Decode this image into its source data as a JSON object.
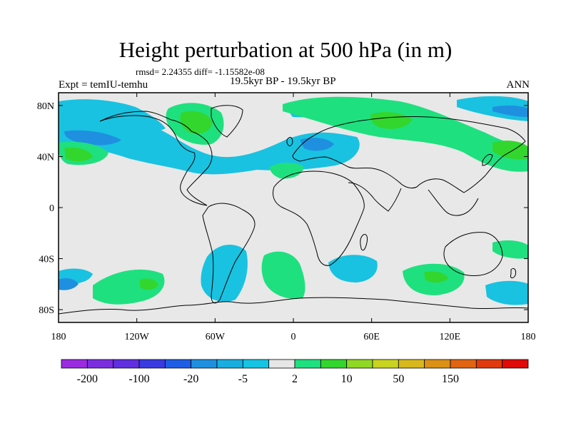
{
  "title": "Height perturbation at 500 hPa (in m)",
  "stats": "rmsd= 2.24355 diff= -1.15582e-08",
  "period": "19.5kyr BP - 19.5kyr BP",
  "experiment": "Expt = temIU-temhu",
  "season": "ANN",
  "map": {
    "projection": "cylindrical-equidistant",
    "lon_range": [
      -180,
      180
    ],
    "lat_range": [
      -90,
      90
    ],
    "background_color": "#e8e8e8",
    "coastline_color": "#000000",
    "lat_ticks": [
      {
        "value": 80,
        "label": "80N"
      },
      {
        "value": 40,
        "label": "40N"
      },
      {
        "value": 0,
        "label": "0"
      },
      {
        "value": -40,
        "label": "40S"
      },
      {
        "value": -80,
        "label": "80S"
      }
    ],
    "lon_ticks": [
      {
        "value": -180,
        "label": "180"
      },
      {
        "value": -120,
        "label": "120W"
      },
      {
        "value": -60,
        "label": "60W"
      },
      {
        "value": 0,
        "label": "0"
      },
      {
        "value": 60,
        "label": "60E"
      },
      {
        "value": 120,
        "label": "120E"
      },
      {
        "value": 180,
        "label": "180"
      }
    ]
  },
  "colorbar": {
    "colors": [
      "#9a2be0",
      "#7b2ee0",
      "#5f2fe0",
      "#3a3ae3",
      "#1e5ee6",
      "#1f8fe0",
      "#19aee0",
      "#15c5e3",
      "#e6e6e6",
      "#1fe07f",
      "#33d62d",
      "#8fd824",
      "#c8d41f",
      "#d8b81c",
      "#dc9016",
      "#e06412",
      "#e03a0e",
      "#e00a08"
    ],
    "tick_labels": [
      {
        "boundary": 1,
        "label": "-200"
      },
      {
        "boundary": 3,
        "label": "-100"
      },
      {
        "boundary": 5,
        "label": "-20"
      },
      {
        "boundary": 7,
        "label": "-5"
      },
      {
        "boundary": 9,
        "label": "2"
      },
      {
        "boundary": 11,
        "label": "10"
      },
      {
        "boundary": 13,
        "label": "50"
      },
      {
        "boundary": 15,
        "label": "150"
      }
    ]
  }
}
